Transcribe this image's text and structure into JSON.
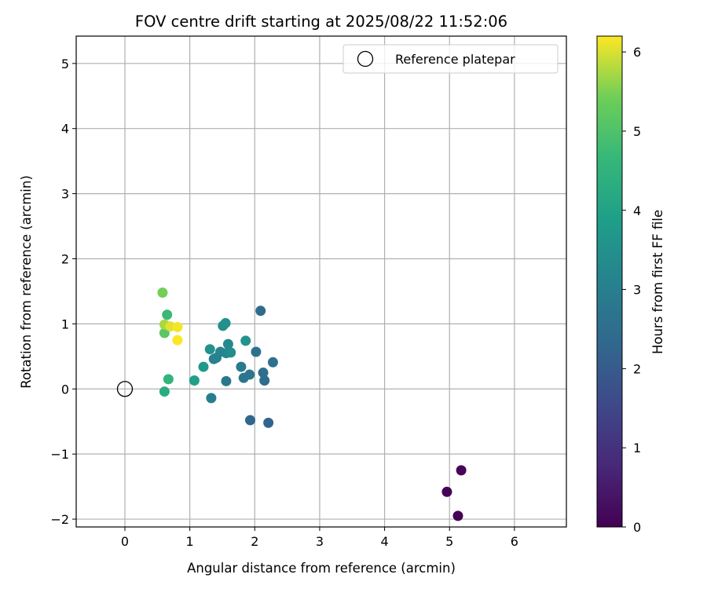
{
  "chart_data": {
    "type": "scatter",
    "title": "FOV centre drift starting at 2025/08/22 11:52:06",
    "xlabel": "Angular distance from reference (arcmin)",
    "ylabel": "Rotation from reference (arcmin)",
    "xlim": [
      -0.75,
      6.8
    ],
    "ylim": [
      -2.12,
      5.42
    ],
    "xticks": [
      0,
      1,
      2,
      3,
      4,
      5,
      6
    ],
    "yticks": [
      -2,
      -1,
      0,
      1,
      2,
      3,
      4,
      5
    ],
    "xtick_labels": [
      "0",
      "1",
      "2",
      "3",
      "4",
      "5",
      "6"
    ],
    "ytick_labels": [
      "−2",
      "−1",
      "0",
      "1",
      "2",
      "3",
      "4",
      "5"
    ],
    "grid": true,
    "legend": {
      "position": "top-right",
      "entries": [
        "Reference platepar"
      ]
    },
    "reference_point": {
      "x": 0,
      "y": 0,
      "name": "Reference platepar"
    },
    "colorbar": {
      "label": "Hours from first FF file",
      "colormap": "viridis",
      "min": 0,
      "max": 6.2,
      "ticks": [
        0,
        1,
        2,
        3,
        4,
        5,
        6
      ],
      "tick_labels": [
        "0",
        "1",
        "2",
        "3",
        "4",
        "5",
        "6"
      ]
    },
    "points": [
      {
        "x": 5.13,
        "y": -1.95,
        "hours": 0.0
      },
      {
        "x": 4.96,
        "y": -1.58,
        "hours": 0.05
      },
      {
        "x": 5.18,
        "y": -1.25,
        "hours": 0.1
      },
      {
        "x": 2.21,
        "y": -0.52,
        "hours": 2.25
      },
      {
        "x": 1.93,
        "y": -0.48,
        "hours": 2.3
      },
      {
        "x": 2.09,
        "y": 1.2,
        "hours": 2.4
      },
      {
        "x": 2.15,
        "y": 0.13,
        "hours": 2.45
      },
      {
        "x": 2.13,
        "y": 0.25,
        "hours": 2.5
      },
      {
        "x": 2.28,
        "y": 0.41,
        "hours": 2.55
      },
      {
        "x": 2.02,
        "y": 0.57,
        "hours": 2.6
      },
      {
        "x": 1.83,
        "y": 0.17,
        "hours": 2.7
      },
      {
        "x": 1.92,
        "y": 0.22,
        "hours": 2.75
      },
      {
        "x": 1.56,
        "y": 0.12,
        "hours": 2.8
      },
      {
        "x": 1.79,
        "y": 0.34,
        "hours": 2.85
      },
      {
        "x": 1.33,
        "y": -0.14,
        "hours": 2.95
      },
      {
        "x": 1.37,
        "y": 0.46,
        "hours": 3.05
      },
      {
        "x": 1.41,
        "y": 0.48,
        "hours": 3.1
      },
      {
        "x": 1.47,
        "y": 0.57,
        "hours": 3.15
      },
      {
        "x": 1.56,
        "y": 0.55,
        "hours": 3.25
      },
      {
        "x": 1.59,
        "y": 0.69,
        "hours": 3.3
      },
      {
        "x": 1.63,
        "y": 0.56,
        "hours": 3.4
      },
      {
        "x": 1.51,
        "y": 0.97,
        "hours": 3.45
      },
      {
        "x": 1.55,
        "y": 1.01,
        "hours": 3.5
      },
      {
        "x": 1.31,
        "y": 0.61,
        "hours": 3.55
      },
      {
        "x": 1.86,
        "y": 0.74,
        "hours": 3.6
      },
      {
        "x": 1.21,
        "y": 0.34,
        "hours": 3.75
      },
      {
        "x": 1.07,
        "y": 0.13,
        "hours": 3.95
      },
      {
        "x": 0.61,
        "y": -0.04,
        "hours": 4.3
      },
      {
        "x": 0.67,
        "y": 0.15,
        "hours": 4.55
      },
      {
        "x": 0.65,
        "y": 1.14,
        "hours": 4.7
      },
      {
        "x": 0.61,
        "y": 0.86,
        "hours": 5.15
      },
      {
        "x": 0.58,
        "y": 1.48,
        "hours": 5.45
      },
      {
        "x": 0.61,
        "y": 0.99,
        "hours": 5.75
      },
      {
        "x": 0.7,
        "y": 0.96,
        "hours": 6.05
      },
      {
        "x": 0.81,
        "y": 0.95,
        "hours": 6.15
      },
      {
        "x": 0.81,
        "y": 0.75,
        "hours": 6.2
      }
    ],
    "colors": {
      "axis": "#000000",
      "grid": "#b0b0b0",
      "reference_marker": "#000000"
    }
  }
}
